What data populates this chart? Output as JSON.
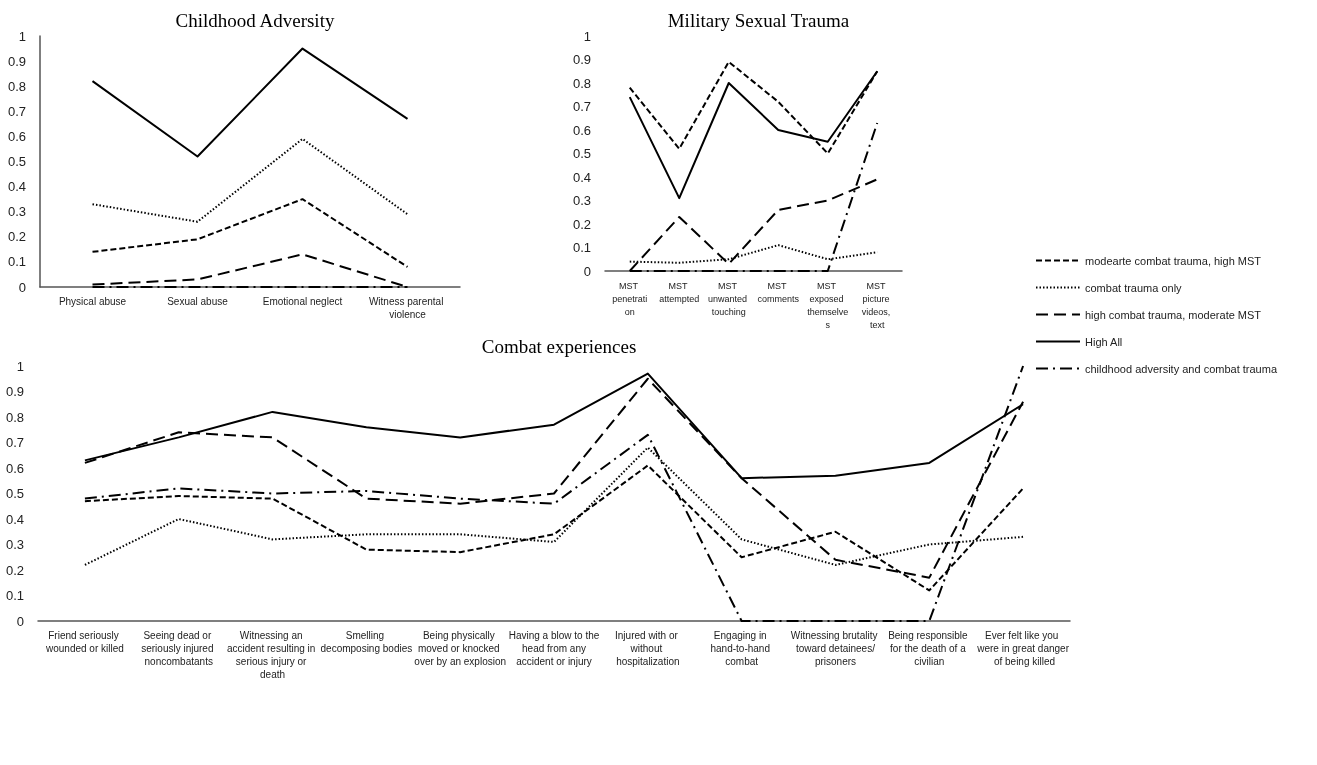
{
  "chart_data": [
    {
      "type": "line",
      "title": "Childhood Adversity",
      "categories": [
        "Physical abuse",
        "Sexual abuse",
        "Emotional neglect",
        "Witness parental violence"
      ],
      "ylim": [
        0,
        1
      ],
      "yticks": [
        0,
        0.1,
        0.2,
        0.3,
        0.4,
        0.5,
        0.6,
        0.7,
        0.8,
        0.9,
        1
      ],
      "grid": false,
      "marker": "none",
      "series": [
        {
          "color": "#000000",
          "line_style": "dashed",
          "values": [
            0.14,
            0.19,
            0.35,
            0.08
          ]
        },
        {
          "color": "#000000",
          "line_style": "dotted",
          "values": [
            0.33,
            0.26,
            0.59,
            0.29
          ]
        },
        {
          "color": "#000000",
          "line_style": "longdash",
          "values": [
            0.01,
            0.03,
            0.13,
            0
          ]
        },
        {
          "color": "#000000",
          "line_style": "solid",
          "values": [
            0.82,
            0.52,
            0.95,
            0.67
          ]
        },
        {
          "color": "#000000",
          "line_style": "dashdot",
          "values": [
            0,
            0,
            0,
            0
          ]
        }
      ]
    },
    {
      "type": "line",
      "title": "Military Sexual Trauma",
      "categories": [
        "MST penetration",
        "MST attempted",
        "MST unwanted touching",
        "MST comments",
        "MST exposed themselves",
        "MST picture videos, text"
      ],
      "ylim": [
        0,
        1
      ],
      "yticks": [
        0,
        0.1,
        0.2,
        0.3,
        0.4,
        0.5,
        0.6,
        0.7,
        0.8,
        0.9,
        1
      ],
      "grid": false,
      "marker": "none",
      "legend": "right",
      "series": [
        {
          "name": "modearte combat trauma, high MST",
          "color": "#000000",
          "line_style": "dashed",
          "values": [
            0.78,
            0.52,
            0.89,
            0.72,
            0.5,
            0.85
          ]
        },
        {
          "name": "combat trauma only",
          "color": "#000000",
          "line_style": "dotted",
          "values": [
            0.04,
            0.035,
            0.05,
            0.11,
            0.05,
            0.08
          ]
        },
        {
          "name": "high combat trauma, moderate MST",
          "color": "#000000",
          "line_style": "longdash",
          "values": [
            0,
            0.23,
            0.03,
            0.26,
            0.3,
            0.39
          ]
        },
        {
          "name": "High All",
          "color": "#000000",
          "line_style": "solid",
          "values": [
            0.74,
            0.31,
            0.8,
            0.6,
            0.55,
            0.85
          ]
        },
        {
          "name": "childhood adversity and combat trauma",
          "color": "#000000",
          "line_style": "dashdot",
          "values": [
            0,
            0,
            0,
            0,
            0,
            0.63
          ]
        }
      ]
    },
    {
      "type": "line",
      "title": "Combat experiences",
      "categories": [
        "Friend seriously wounded or killed",
        "Seeing dead or seriously injured noncombatants",
        "Witnessing an accident resulting in serious injury or death",
        "Smelling decomposing bodies",
        "Being physically moved or knocked over by an explosion",
        "Having a blow to the head from any accident or injury",
        "Injured with or without hospitalization",
        "Engaging in hand-to-hand combat",
        "Witnessing brutality toward detainees/prisoners",
        "Being responsible for the death of a civilian",
        "Ever felt like you were in great danger of being killed"
      ],
      "ylim": [
        0,
        1
      ],
      "yticks": [
        0,
        0.1,
        0.2,
        0.3,
        0.4,
        0.5,
        0.6,
        0.7,
        0.8,
        0.9,
        1
      ],
      "grid": false,
      "marker": "none",
      "series": [
        {
          "color": "#000000",
          "line_style": "dashed",
          "values": [
            0.47,
            0.49,
            0.48,
            0.28,
            0.27,
            0.34,
            0.61,
            0.25,
            0.35,
            0.12,
            0.52
          ]
        },
        {
          "color": "#000000",
          "line_style": "dotted",
          "values": [
            0.22,
            0.4,
            0.32,
            0.34,
            0.34,
            0.31,
            0.68,
            0.32,
            0.22,
            0.3,
            0.33
          ]
        },
        {
          "color": "#000000",
          "line_style": "longdash",
          "values": [
            0.62,
            0.74,
            0.72,
            0.48,
            0.46,
            0.5,
            0.95,
            0.56,
            0.24,
            0.17,
            0.86
          ]
        },
        {
          "color": "#000000",
          "line_style": "solid",
          "values": [
            0.63,
            0.72,
            0.82,
            0.76,
            0.72,
            0.77,
            0.97,
            0.56,
            0.57,
            0.62,
            0.85
          ]
        },
        {
          "color": "#000000",
          "line_style": "dashdot",
          "values": [
            0.48,
            0.52,
            0.5,
            0.51,
            0.48,
            0.46,
            0.73,
            0,
            0,
            0,
            1
          ]
        }
      ]
    }
  ]
}
